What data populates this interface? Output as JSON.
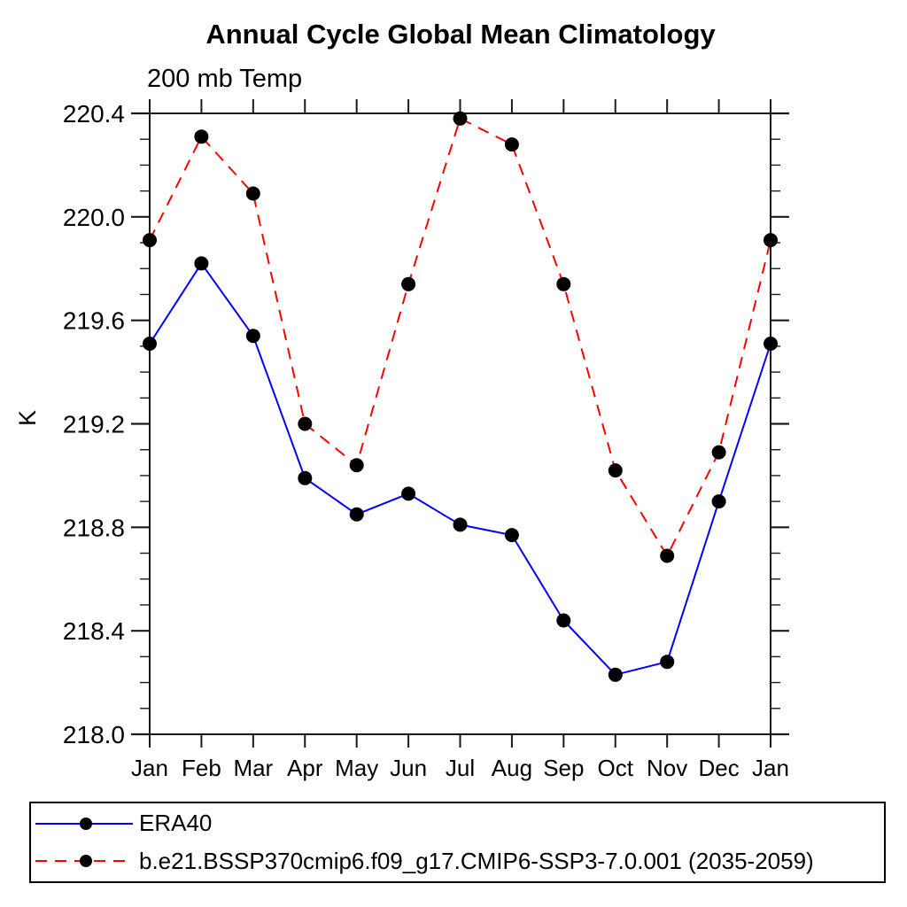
{
  "page": {
    "background_color": "#ffffff",
    "text_color": "#000000",
    "axis_color": "#1a1a1a"
  },
  "chart_data": {
    "type": "line",
    "title": "Annual Cycle Global Mean Climatology",
    "subtitle": "200 mb Temp",
    "ylabel": "K",
    "xlabel": "",
    "categories": [
      "Jan",
      "Feb",
      "Mar",
      "Apr",
      "May",
      "Jun",
      "Jul",
      "Aug",
      "Sep",
      "Oct",
      "Nov",
      "Dec",
      "Jan"
    ],
    "ylim": [
      218.0,
      220.4
    ],
    "ytick_major_interval": 0.4,
    "ytick_minor_interval": 0.1,
    "ytick_labels": [
      "218.0",
      "218.4",
      "218.8",
      "219.2",
      "219.6",
      "220.0",
      "220.4"
    ],
    "grid": false,
    "legend_position": "bottom-left-box",
    "series": [
      {
        "name": "ERA40",
        "color": "#0000ff",
        "line_style": "solid",
        "marker": "filled-circle",
        "marker_color": "#000000",
        "values": [
          219.51,
          219.82,
          219.54,
          218.99,
          218.85,
          218.93,
          218.81,
          218.77,
          218.44,
          218.23,
          218.28,
          218.9,
          219.51
        ]
      },
      {
        "name": "b.e21.BSSP370cmip6.f09_g17.CMIP6-SSP3-7.0.001 (2035-2059)",
        "color": "#ff0000",
        "line_style": "dashed",
        "marker": "filled-circle",
        "marker_color": "#000000",
        "values": [
          219.91,
          220.31,
          220.09,
          219.2,
          219.04,
          219.74,
          220.38,
          220.28,
          219.74,
          219.02,
          218.69,
          219.09,
          219.91
        ]
      }
    ]
  }
}
